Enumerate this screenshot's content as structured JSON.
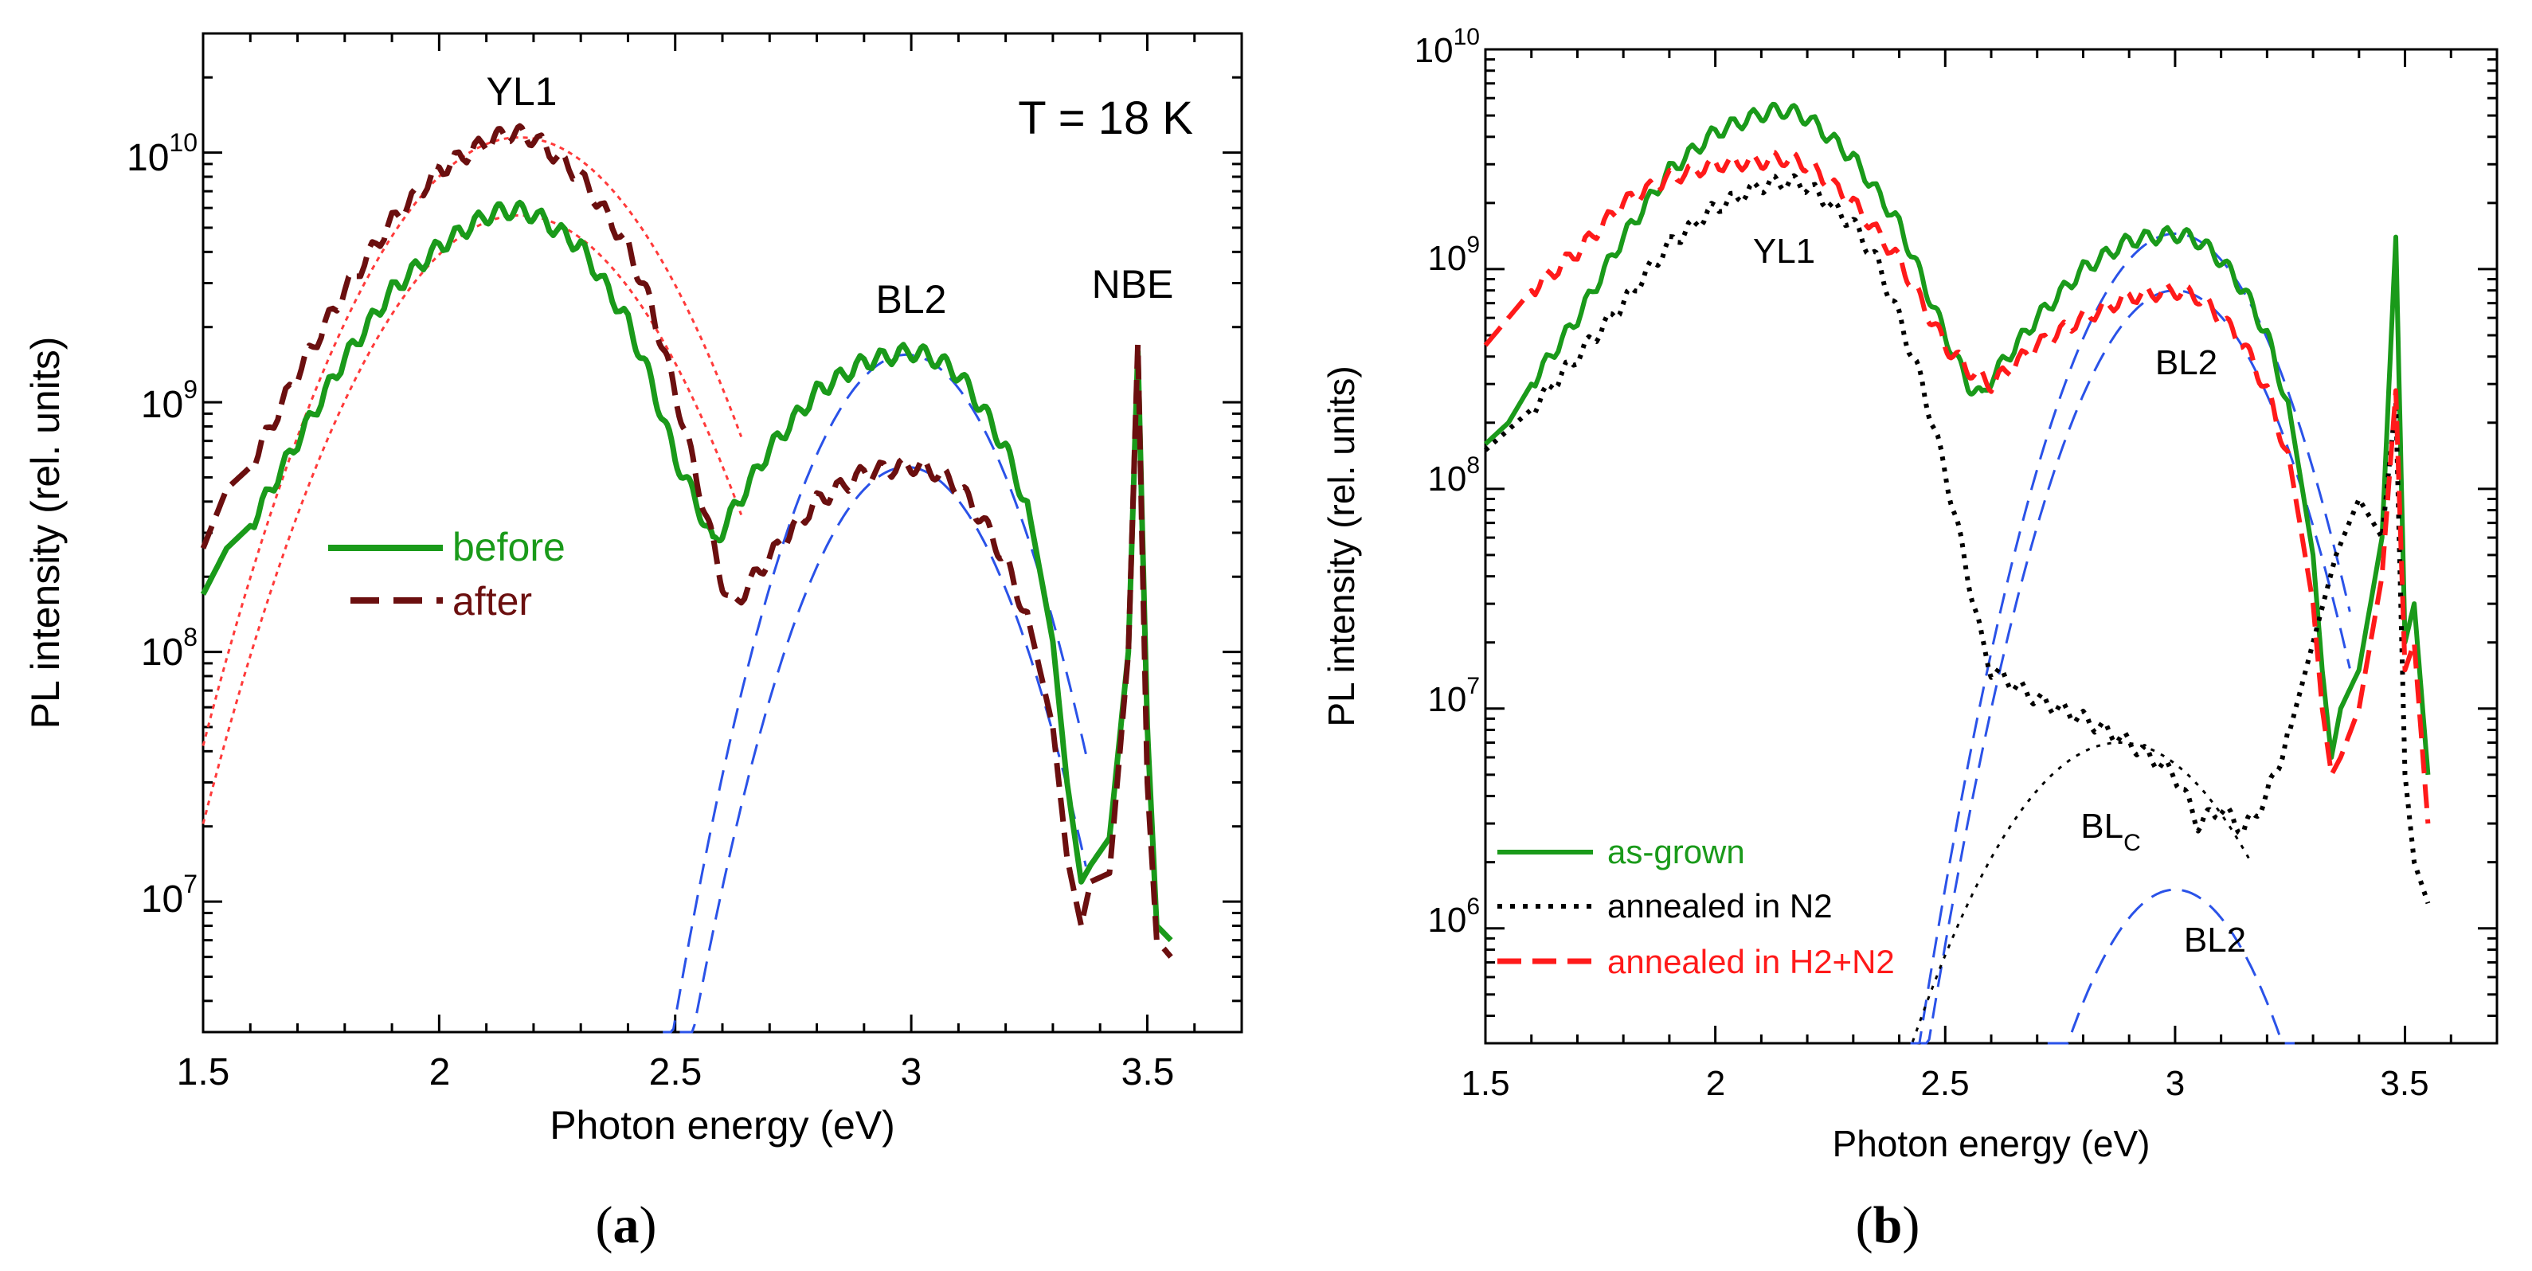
{
  "figure": {
    "panels": [
      {
        "id": "a",
        "caption": "(a)",
        "caption_letter": "a",
        "title": "",
        "xlabel": "Photon energy (eV)",
        "ylabel": "PL intensity (rel. units)",
        "x_ticks": [
          "1.5",
          "2",
          "2.5",
          "3",
          "3.5"
        ],
        "y_ticks": [
          {
            "base": "10",
            "exp": "7"
          },
          {
            "base": "10",
            "exp": "8"
          },
          {
            "base": "10",
            "exp": "9"
          },
          {
            "base": "10",
            "exp": "10"
          }
        ],
        "annotations": [
          "YL1",
          "BL2",
          "NBE",
          "T = 18 K"
        ],
        "legend": [
          "before",
          "after"
        ]
      },
      {
        "id": "b",
        "caption": "(b)",
        "caption_letter": "b",
        "title": "",
        "xlabel": "Photon energy (eV)",
        "ylabel": "PL intensity (rel. units)",
        "x_ticks": [
          "1.5",
          "2",
          "2.5",
          "3",
          "3.5"
        ],
        "y_ticks": [
          {
            "base": "10",
            "exp": "6"
          },
          {
            "base": "10",
            "exp": "7"
          },
          {
            "base": "10",
            "exp": "8"
          },
          {
            "base": "10",
            "exp": "9"
          },
          {
            "base": "10",
            "exp": "10"
          }
        ],
        "annotations": [
          "YL1",
          "BL2",
          "BL",
          "C",
          "BL2"
        ],
        "legend": [
          "as-grown",
          "annealed in N2",
          "annealed in H2+N2"
        ]
      }
    ]
  },
  "colors": {
    "green": "#1a9a1a",
    "darkred": "#6b0f0f",
    "red": "#ff1a1a",
    "blue": "#2a52e8",
    "black": "#000000",
    "fit_red": "#ff3a3a"
  },
  "chart_data": [
    {
      "type": "line",
      "panel": "a",
      "title": "",
      "xlabel": "Photon energy (eV)",
      "ylabel": "PL intensity (rel. units)",
      "xlim": [
        1.5,
        3.7
      ],
      "ylim": [
        3000000.0,
        30000000000.0
      ],
      "yscale": "log",
      "series": [
        {
          "name": "before",
          "style": "solid",
          "color": "green",
          "x": [
            1.5,
            1.55,
            1.6,
            1.7,
            1.8,
            1.9,
            2.0,
            2.1,
            2.15,
            2.2,
            2.3,
            2.4,
            2.45,
            2.5,
            2.55,
            2.58,
            2.6,
            2.7,
            2.8,
            2.9,
            3.0,
            3.05,
            3.1,
            3.15,
            3.2,
            3.25,
            3.3,
            3.33,
            3.36,
            3.38,
            3.42,
            3.46,
            3.48,
            3.5,
            3.52,
            3.55
          ],
          "y": [
            170000000.0,
            260000000.0,
            320000000.0,
            700000000.0,
            1500000000.0,
            2800000000.0,
            4200000000.0,
            5600000000.0,
            5900000000.0,
            5700000000.0,
            4200000000.0,
            2100000000.0,
            1200000000.0,
            600000000.0,
            380000000.0,
            270000000.0,
            310000000.0,
            650000000.0,
            1100000000.0,
            1450000000.0,
            1600000000.0,
            1500000000.0,
            1300000000.0,
            950000000.0,
            650000000.0,
            360000000.0,
            110000000.0,
            30000000.0,
            12000000.0,
            14000000.0,
            18000000.0,
            100000000.0,
            1600000000.0,
            50000000.0,
            8000000.0,
            7000000.0
          ]
        },
        {
          "name": "after",
          "style": "dashed",
          "color": "darkred",
          "x": [
            1.5,
            1.55,
            1.6,
            1.7,
            1.8,
            1.9,
            2.0,
            2.1,
            2.15,
            2.2,
            2.3,
            2.4,
            2.45,
            2.5,
            2.55,
            2.6,
            2.62,
            2.7,
            2.8,
            2.9,
            3.0,
            3.05,
            3.1,
            3.15,
            3.2,
            3.25,
            3.3,
            3.33,
            3.36,
            3.38,
            3.42,
            3.46,
            3.48,
            3.5,
            3.52,
            3.55
          ],
          "y": [
            260000000.0,
            450000000.0,
            550000000.0,
            1300000000.0,
            2800000000.0,
            5300000000.0,
            8500000000.0,
            11000000000.0,
            12000000000.0,
            11500000000.0,
            8000000000.0,
            4200000000.0,
            2400000000.0,
            1100000000.0,
            460000000.0,
            190000000.0,
            150000000.0,
            240000000.0,
            400000000.0,
            520000000.0,
            560000000.0,
            530000000.0,
            460000000.0,
            340000000.0,
            230000000.0,
            130000000.0,
            50000000.0,
            15000000.0,
            8000000.0,
            12000000.0,
            13000000.0,
            100000000.0,
            1700000000.0,
            30000000.0,
            7000000.0,
            6000000.0
          ]
        },
        {
          "name": "YL1 fit (before)",
          "style": "dotted",
          "color": "fit_red",
          "center": 2.17,
          "peak": 5600000000.0,
          "sigma": 0.2,
          "x_range": [
            1.5,
            2.64
          ]
        },
        {
          "name": "YL1 fit (after)",
          "style": "dotted",
          "color": "fit_red",
          "center": 2.17,
          "peak": 11500000000.0,
          "sigma": 0.2,
          "x_range": [
            1.5,
            2.64
          ]
        },
        {
          "name": "BL2 fit (before)",
          "style": "dashed",
          "color": "blue",
          "center": 2.99,
          "peak": 1550000000.0,
          "sigma": 0.14,
          "x_range": [
            2.13,
            3.37
          ]
        },
        {
          "name": "BL2 fit (after)",
          "style": "dashed",
          "color": "blue",
          "center": 2.99,
          "peak": 550000000.0,
          "sigma": 0.14,
          "x_range": [
            2.23,
            3.37
          ]
        }
      ]
    },
    {
      "type": "line",
      "panel": "b",
      "title": "",
      "xlabel": "Photon energy (eV)",
      "ylabel": "PL intensity (rel. units)",
      "xlim": [
        1.5,
        3.7
      ],
      "ylim": [
        300000.0,
        10000000000.0
      ],
      "yscale": "log",
      "series": [
        {
          "name": "as-grown",
          "style": "solid",
          "color": "green",
          "x": [
            1.5,
            1.55,
            1.6,
            1.7,
            1.8,
            1.9,
            2.0,
            2.1,
            2.15,
            2.2,
            2.3,
            2.4,
            2.45,
            2.5,
            2.55,
            2.58,
            2.6,
            2.7,
            2.8,
            2.9,
            3.0,
            3.05,
            3.1,
            3.15,
            3.2,
            3.25,
            3.3,
            3.32,
            3.34,
            3.36,
            3.4,
            3.45,
            3.48,
            3.5,
            3.52,
            3.55
          ],
          "y": [
            160000000.0,
            200000000.0,
            300000000.0,
            600000000.0,
            1400000000.0,
            2800000000.0,
            4200000000.0,
            5100000000.0,
            5300000000.0,
            4900000000.0,
            3200000000.0,
            1600000000.0,
            900000000.0,
            500000000.0,
            300000000.0,
            260000000.0,
            320000000.0,
            600000000.0,
            1000000000.0,
            1350000000.0,
            1450000000.0,
            1350000000.0,
            1100000000.0,
            800000000.0,
            500000000.0,
            220000000.0,
            50000000.0,
            15000000.0,
            6000000.0,
            10000000.0,
            15000000.0,
            60000000.0,
            1400000000.0,
            20000000.0,
            30000000.0,
            5000000.0
          ]
        },
        {
          "name": "annealed in N2",
          "style": "dotted",
          "color": "black",
          "x": [
            1.5,
            1.6,
            1.7,
            1.8,
            1.9,
            2.0,
            2.1,
            2.15,
            2.2,
            2.3,
            2.35,
            2.4,
            2.45,
            2.5,
            2.55,
            2.58,
            2.6,
            2.7,
            2.8,
            2.9,
            3.0,
            3.05,
            3.1,
            3.15,
            3.2,
            3.25,
            3.3,
            3.35,
            3.4,
            3.45,
            3.48,
            3.5,
            3.52,
            3.55
          ],
          "y": [
            150000000.0,
            230000000.0,
            400000000.0,
            700000000.0,
            1300000000.0,
            1900000000.0,
            2400000000.0,
            2500000000.0,
            2400000000.0,
            1600000000.0,
            1100000000.0,
            600000000.0,
            300000000.0,
            120000000.0,
            40000000.0,
            20000000.0,
            15000000.0,
            11000000.0,
            9000000.0,
            7000000.0,
            5000000.0,
            3000000.0,
            3500000.0,
            2800000.0,
            4000000.0,
            8000000.0,
            20000000.0,
            50000000.0,
            90000000.0,
            60000000.0,
            250000000.0,
            5000000.0,
            2000000.0,
            1300000.0
          ]
        },
        {
          "name": "annealed in H2+N2",
          "style": "dashed",
          "color": "red",
          "x": [
            1.5,
            1.55,
            1.6,
            1.7,
            1.8,
            1.9,
            2.0,
            2.1,
            2.15,
            2.2,
            2.3,
            2.4,
            2.45,
            2.5,
            2.55,
            2.6,
            2.7,
            2.8,
            2.9,
            3.0,
            3.05,
            3.1,
            3.15,
            3.2,
            3.25,
            3.3,
            3.32,
            3.34,
            3.36,
            3.4,
            3.45,
            3.48,
            3.5,
            3.52,
            3.55
          ],
          "y": [
            450000000.0,
            600000000.0,
            800000000.0,
            1200000000.0,
            2000000000.0,
            2600000000.0,
            3000000000.0,
            3100000000.0,
            3200000000.0,
            3000000000.0,
            2000000000.0,
            1100000000.0,
            700000000.0,
            450000000.0,
            350000000.0,
            300000000.0,
            450000000.0,
            600000000.0,
            750000000.0,
            800000000.0,
            750000000.0,
            600000000.0,
            450000000.0,
            280000000.0,
            130000000.0,
            30000000.0,
            10000000.0,
            5000000.0,
            6000000.0,
            10000000.0,
            40000000.0,
            280000000.0,
            15000000.0,
            20000000.0,
            3000000.0
          ]
        },
        {
          "name": "BL2 fit (as-grown)",
          "style": "dashed",
          "color": "blue",
          "center": 3.0,
          "peak": 1450000000.0,
          "sigma": 0.135,
          "x_range": [
            1.93,
            3.38
          ]
        },
        {
          "name": "BL2 fit (H2+N2)",
          "style": "dashed",
          "color": "blue",
          "center": 3.0,
          "peak": 800000000.0,
          "sigma": 0.135,
          "x_range": [
            2.02,
            3.38
          ]
        },
        {
          "name": "BLC fit",
          "style": "dotted",
          "color": "black",
          "center": 2.88,
          "peak": 7000000.0,
          "sigma": 0.18,
          "x_range": [
            2.25,
            3.16
          ]
        },
        {
          "name": "BL2 fit (N2)",
          "style": "dashed",
          "color": "blue",
          "center": 3.0,
          "peak": 1500000.0,
          "sigma": 0.13,
          "x_range": [
            2.66,
            3.26
          ]
        }
      ]
    }
  ]
}
